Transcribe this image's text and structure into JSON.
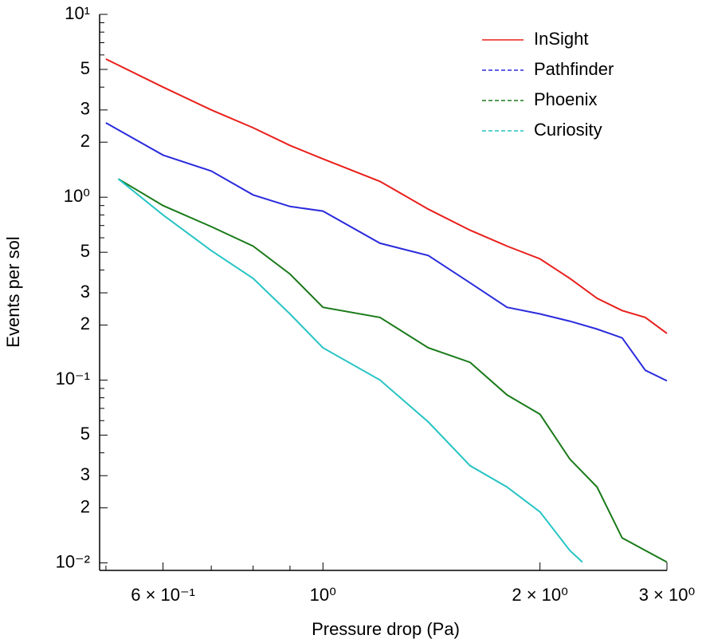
{
  "chart_data": {
    "type": "line",
    "xlabel": "Pressure drop (Pa)",
    "ylabel": "Events per sol",
    "xscale": "log",
    "yscale": "log",
    "xlim": [
      0.49,
      3
    ],
    "ylim": [
      0.0091,
      10
    ],
    "xticks": [
      {
        "value": 0.6,
        "label": "6 × 10⁻¹"
      },
      {
        "value": 1,
        "label": "10⁰"
      },
      {
        "value": 2,
        "label": "2 × 10⁰"
      },
      {
        "value": 3,
        "label": "3 × 10⁰"
      }
    ],
    "xticks_minor": [
      0.5,
      0.7,
      0.8,
      0.9
    ],
    "yticks": [
      {
        "value": 10,
        "label": "10¹"
      },
      5,
      3,
      2,
      {
        "value": 1,
        "label": "10⁰"
      },
      {
        "value": 0.5,
        "label": "5"
      },
      {
        "value": 0.3,
        "label": "3"
      },
      {
        "value": 0.2,
        "label": "2"
      },
      {
        "value": 0.1,
        "label": "10⁻¹"
      },
      {
        "value": 0.05,
        "label": "5"
      },
      {
        "value": 0.03,
        "label": "3"
      },
      {
        "value": 0.02,
        "label": "2"
      },
      {
        "value": 0.01,
        "label": "10⁻²"
      }
    ],
    "yticks_minor": [
      9,
      8,
      7,
      6,
      4,
      0.9,
      0.8,
      0.7,
      0.6,
      0.4,
      0.09,
      0.08,
      0.07,
      0.06,
      0.04
    ],
    "legend": "upper right",
    "series": [
      {
        "name": "InSight",
        "color": "#e8201c",
        "linestyle": "solid",
        "x": [
          0.5,
          0.6,
          0.7,
          0.8,
          0.9,
          1.0,
          1.2,
          1.4,
          1.6,
          1.8,
          2.0,
          2.2,
          2.4,
          2.6,
          2.8,
          3.0
        ],
        "values": [
          5.7,
          4.0,
          3.0,
          2.4,
          1.92,
          1.62,
          1.22,
          0.86,
          0.66,
          0.54,
          0.46,
          0.36,
          0.28,
          0.24,
          0.22,
          0.18
        ]
      },
      {
        "name": "Pathfinder",
        "color": "#2b2bdd",
        "linestyle": "dashed",
        "x": [
          0.5,
          0.6,
          0.7,
          0.8,
          0.9,
          1.0,
          1.2,
          1.4,
          1.6,
          1.8,
          2.0,
          2.2,
          2.4,
          2.6,
          2.8,
          3.0
        ],
        "values": [
          2.55,
          1.7,
          1.39,
          1.03,
          0.89,
          0.84,
          0.56,
          0.48,
          0.34,
          0.25,
          0.23,
          0.21,
          0.19,
          0.17,
          0.113,
          0.099
        ]
      },
      {
        "name": "Phoenix",
        "color": "#1a7a1a",
        "linestyle": "dashed",
        "x": [
          0.52,
          0.6,
          0.7,
          0.8,
          0.9,
          1.0,
          1.2,
          1.4,
          1.6,
          1.8,
          2.0,
          2.2,
          2.4,
          2.6,
          2.8,
          3.0
        ],
        "values": [
          1.26,
          0.9,
          0.69,
          0.54,
          0.38,
          0.25,
          0.22,
          0.15,
          0.125,
          0.083,
          0.065,
          0.037,
          0.026,
          0.0137,
          0.0117,
          0.0101
        ]
      },
      {
        "name": "Curiosity",
        "color": "#27c4c4",
        "linestyle": "dashed",
        "x": [
          0.52,
          0.6,
          0.7,
          0.8,
          0.9,
          1.0,
          1.2,
          1.4,
          1.6,
          1.8,
          2.0,
          2.2,
          2.29
        ],
        "values": [
          1.26,
          0.8,
          0.51,
          0.36,
          0.23,
          0.15,
          0.1,
          0.059,
          0.034,
          0.026,
          0.019,
          0.0117,
          0.0101
        ]
      }
    ]
  }
}
